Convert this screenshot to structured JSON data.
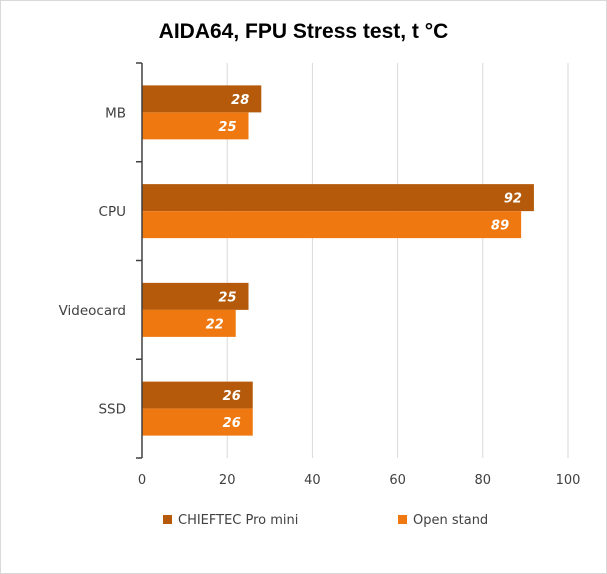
{
  "chart_data": {
    "type": "bar",
    "orientation": "horizontal",
    "title": "AIDA64, FPU Stress test, t °C",
    "categories": [
      "MB",
      "CPU",
      "Videocard",
      "SSD"
    ],
    "series": [
      {
        "name": "CHIEFTEC Pro mini",
        "color": "#b45a0a",
        "values": [
          28,
          92,
          25,
          26
        ]
      },
      {
        "name": "Open stand",
        "color": "#f07810",
        "values": [
          25,
          89,
          22,
          26
        ]
      }
    ],
    "xlim": [
      0,
      100
    ],
    "xticks": [
      0,
      20,
      40,
      60,
      80,
      100
    ],
    "grid": true,
    "legend": "bottom",
    "data_labels": true
  }
}
